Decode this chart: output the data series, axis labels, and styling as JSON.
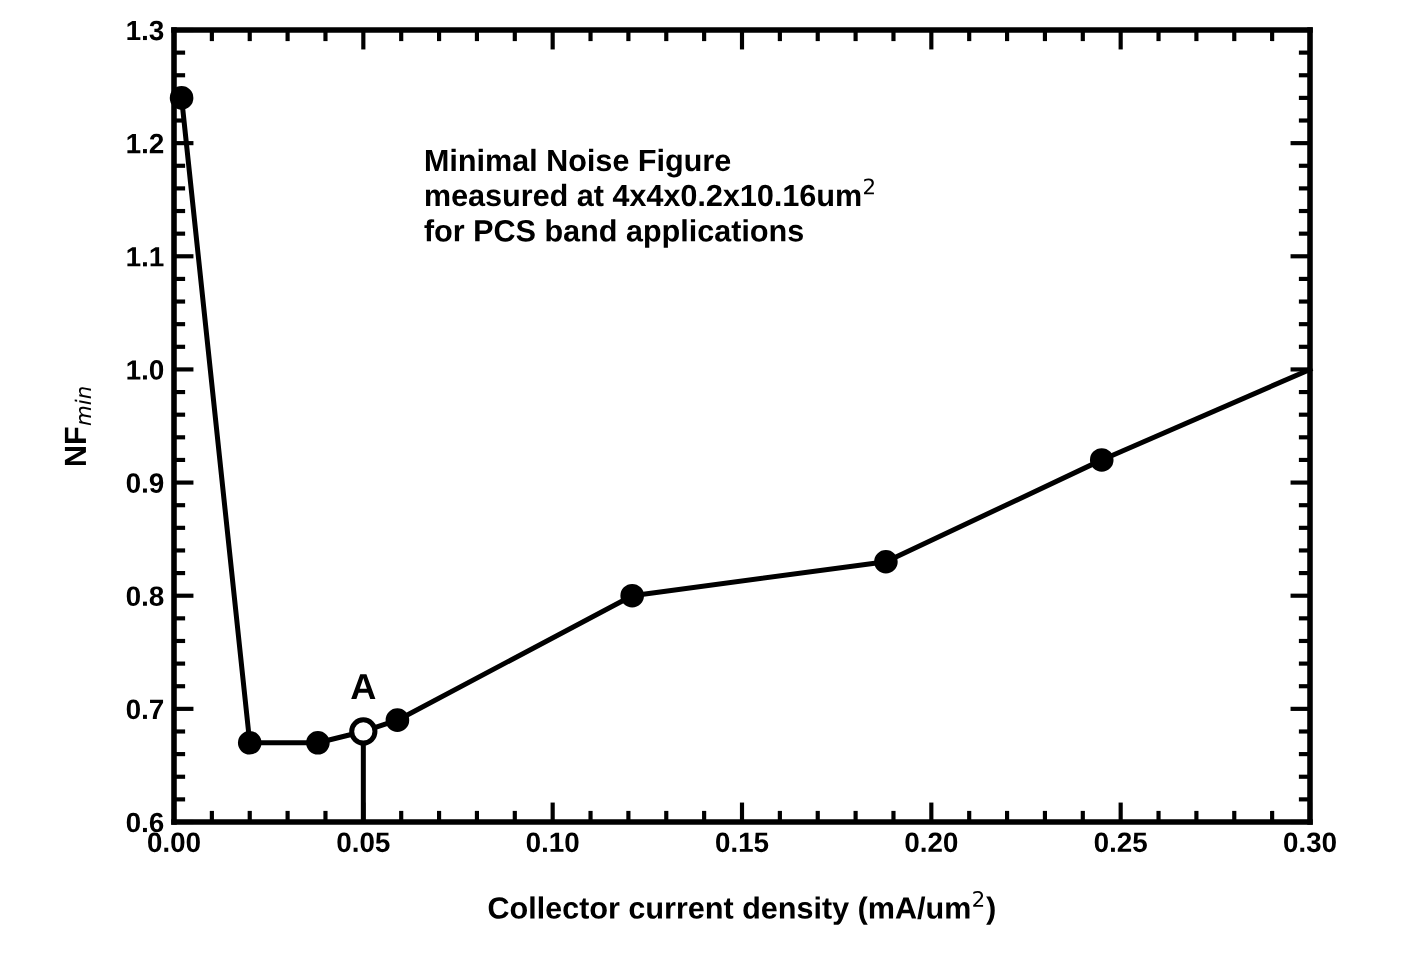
{
  "chart_data": {
    "type": "line",
    "xlabel": "Collector current density (mA/um$^{2}$)",
    "ylabel": "NF$_{min}$",
    "xlim": [
      0,
      0.3
    ],
    "xticks": [
      {
        "value": 0,
        "label": "0.00"
      },
      {
        "value": 0.05,
        "label": "0.05"
      },
      {
        "value": 0.1,
        "label": "0.10"
      },
      {
        "value": 0.15,
        "label": "0.15"
      },
      {
        "value": 0.2,
        "label": "0.20"
      },
      {
        "value": 0.25,
        "label": "0.25"
      },
      {
        "value": 0.3,
        "label": "0.30"
      }
    ],
    "ylim": [
      0.6,
      1.3
    ],
    "yticks": [
      {
        "value": 0.6,
        "label": "0.6"
      },
      {
        "value": 0.7,
        "label": "0.7"
      },
      {
        "value": 0.8,
        "label": "0.8"
      },
      {
        "value": 0.9,
        "label": "0.9"
      },
      {
        "value": 1.0,
        "label": "1.0"
      },
      {
        "value": 1.1,
        "label": "1.1"
      },
      {
        "value": 1.2,
        "label": "1.2"
      },
      {
        "value": 1.3,
        "label": "1.3"
      }
    ],
    "grid": false,
    "legend": false,
    "marker": "circle",
    "line_style": "solid",
    "series": [
      {
        "color": "#000000",
        "x": [
          0.002,
          0.02,
          0.038,
          0.05,
          0.059,
          0.121,
          0.188,
          0.245
        ],
        "values": [
          1.24,
          0.67,
          0.67,
          0.68,
          0.69,
          0.8,
          0.83,
          0.92
        ]
      },
      {
        "color": "#000000",
        "marker": "none",
        "x": [
          0.245,
          0.3
        ],
        "values": [
          0.92,
          1.0
        ]
      },
      {
        "type": "scatter",
        "color": "#ffffff",
        "x": [
          0.05
        ],
        "values": [
          0.68
        ]
      }
    ],
    "ref_lines": [
      {
        "axis": "x",
        "value": 0.05,
        "label": null,
        "color": "#000000"
      }
    ],
    "annotations": [
      {
        "text": "A",
        "x": 0.05,
        "y": 0.68
      },
      "Minimal Noise Figure\nmeasured at 4x4x0.2x10.16um$^{2}$\nfor PCS band applications"
    ]
  }
}
